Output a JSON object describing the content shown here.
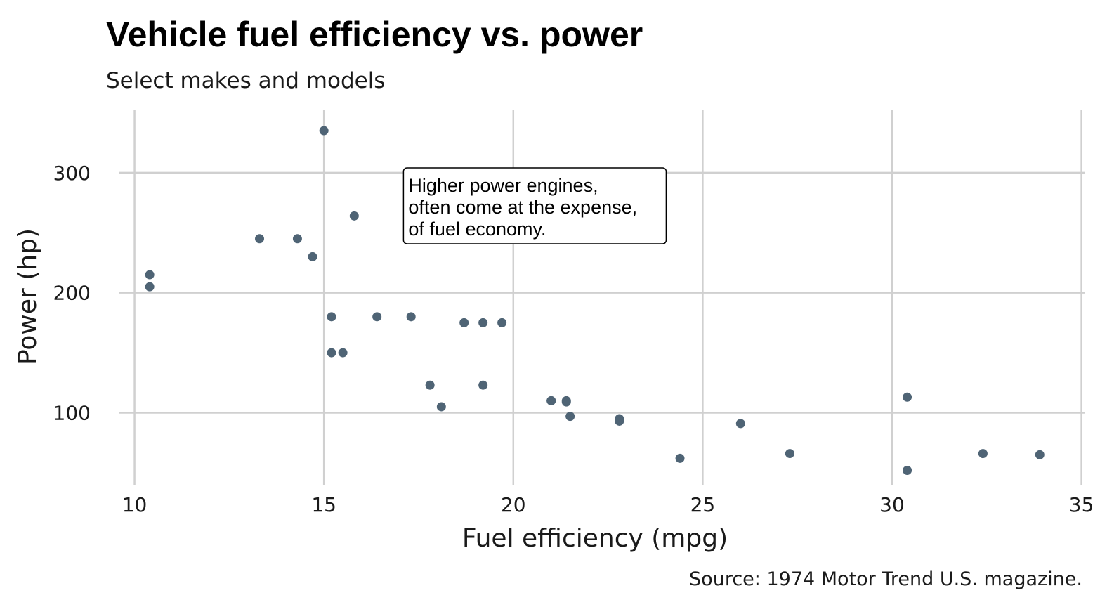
{
  "chart_data": {
    "type": "scatter",
    "title": "Vehicle fuel efficiency vs. power",
    "subtitle": "Select makes and models",
    "xlabel": "Fuel efficiency (mpg)",
    "ylabel": "Power (hp)",
    "caption": "Source: 1974 Motor Trend U.S. magazine.",
    "xlim": [
      9.6,
      35.1
    ],
    "ylim": [
      40,
      352
    ],
    "xticks": [
      10,
      15,
      20,
      25,
      30,
      35
    ],
    "yticks": [
      100,
      200,
      300
    ],
    "grid": true,
    "point_color": "#4f6475",
    "annotation": {
      "lines": [
        "Higher power engines,",
        "often come at the expense,",
        "of fuel economy."
      ],
      "x": 17.1,
      "y": 304
    },
    "points": [
      {
        "x": 21.0,
        "y": 110
      },
      {
        "x": 21.0,
        "y": 110
      },
      {
        "x": 22.8,
        "y": 93
      },
      {
        "x": 21.4,
        "y": 110
      },
      {
        "x": 18.7,
        "y": 175
      },
      {
        "x": 18.1,
        "y": 105
      },
      {
        "x": 14.3,
        "y": 245
      },
      {
        "x": 24.4,
        "y": 62
      },
      {
        "x": 22.8,
        "y": 95
      },
      {
        "x": 19.2,
        "y": 123
      },
      {
        "x": 17.8,
        "y": 123
      },
      {
        "x": 16.4,
        "y": 180
      },
      {
        "x": 17.3,
        "y": 180
      },
      {
        "x": 15.2,
        "y": 180
      },
      {
        "x": 10.4,
        "y": 205
      },
      {
        "x": 10.4,
        "y": 215
      },
      {
        "x": 14.7,
        "y": 230
      },
      {
        "x": 32.4,
        "y": 66
      },
      {
        "x": 30.4,
        "y": 52
      },
      {
        "x": 33.9,
        "y": 65
      },
      {
        "x": 21.5,
        "y": 97
      },
      {
        "x": 15.5,
        "y": 150
      },
      {
        "x": 15.2,
        "y": 150
      },
      {
        "x": 13.3,
        "y": 245
      },
      {
        "x": 19.2,
        "y": 175
      },
      {
        "x": 27.3,
        "y": 66
      },
      {
        "x": 26.0,
        "y": 91
      },
      {
        "x": 30.4,
        "y": 113
      },
      {
        "x": 15.8,
        "y": 264
      },
      {
        "x": 19.7,
        "y": 175
      },
      {
        "x": 15.0,
        "y": 335
      },
      {
        "x": 21.4,
        "y": 109
      }
    ]
  }
}
